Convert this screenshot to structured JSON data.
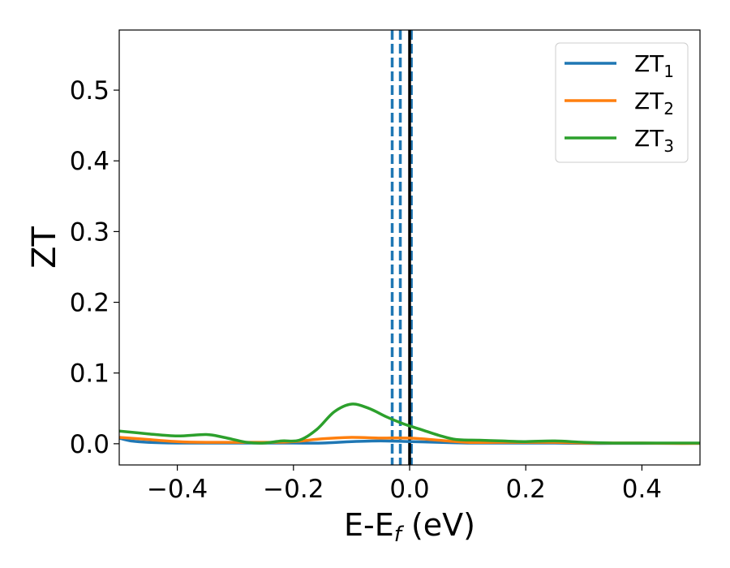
{
  "chart_data": {
    "type": "line",
    "title": "",
    "xlabel": "E-E",
    "xlabel_sub": "f",
    "xlabel_unit": " (eV)",
    "ylabel": "ZT",
    "xlim": [
      -0.5,
      0.5
    ],
    "ylim": [
      -0.03,
      0.585
    ],
    "x_ticks": [
      -0.4,
      -0.2,
      0.0,
      0.2,
      0.4
    ],
    "x_tick_labels": [
      "−0.4",
      "−0.2",
      "0.0",
      "0.2",
      "0.4"
    ],
    "y_ticks": [
      0.0,
      0.1,
      0.2,
      0.3,
      0.4,
      0.5
    ],
    "y_tick_labels": [
      "0.0",
      "0.1",
      "0.2",
      "0.3",
      "0.4",
      "0.5"
    ],
    "grid": false,
    "legend_position": "top-right",
    "vertical_lines": [
      {
        "x": -0.03,
        "style": "dashed",
        "color": "#1f77b4"
      },
      {
        "x": -0.016,
        "style": "dashed",
        "color": "#1f77b4"
      },
      {
        "x": 0.003,
        "style": "dashed",
        "color": "#1f77b4"
      },
      {
        "x": 0.0,
        "style": "solid",
        "color": "#000000"
      }
    ],
    "series": [
      {
        "name": "ZT",
        "subscript": "1",
        "color": "#1f77b4",
        "x": [
          -0.5,
          -0.48,
          -0.45,
          -0.4,
          -0.35,
          -0.3,
          -0.25,
          -0.2,
          -0.15,
          -0.1,
          -0.05,
          0.0,
          0.05,
          0.1,
          0.15,
          0.2,
          0.25,
          0.3,
          0.35,
          0.4,
          0.45,
          0.5
        ],
        "y": [
          0.008,
          0.004,
          0.002,
          0.001,
          0.001,
          0.001,
          0.001,
          0.001,
          0.001,
          0.003,
          0.004,
          0.003,
          0.002,
          0.001,
          0.001,
          0.001,
          0.001,
          0.0005,
          0.0005,
          0.0005,
          0.0005,
          0.0005
        ]
      },
      {
        "name": "ZT",
        "subscript": "2",
        "color": "#ff7f0e",
        "x": [
          -0.5,
          -0.45,
          -0.4,
          -0.35,
          -0.3,
          -0.25,
          -0.2,
          -0.15,
          -0.1,
          -0.05,
          0.0,
          0.05,
          0.1,
          0.15,
          0.2,
          0.25,
          0.3,
          0.35,
          0.4,
          0.45,
          0.5
        ],
        "y": [
          0.009,
          0.006,
          0.003,
          0.002,
          0.002,
          0.002,
          0.003,
          0.007,
          0.009,
          0.008,
          0.008,
          0.005,
          0.002,
          0.002,
          0.002,
          0.002,
          0.001,
          0.001,
          0.001,
          0.0005,
          0.0005
        ]
      },
      {
        "name": "ZT",
        "subscript": "3",
        "color": "#2ca02c",
        "x": [
          -0.5,
          -0.45,
          -0.4,
          -0.35,
          -0.32,
          -0.28,
          -0.25,
          -0.22,
          -0.19,
          -0.16,
          -0.13,
          -0.1,
          -0.07,
          -0.04,
          -0.01,
          0.02,
          0.05,
          0.08,
          0.12,
          0.16,
          0.2,
          0.25,
          0.3,
          0.35,
          0.4,
          0.45,
          0.5
        ],
        "y": [
          0.018,
          0.014,
          0.011,
          0.013,
          0.009,
          0.002,
          0.001,
          0.004,
          0.005,
          0.02,
          0.045,
          0.056,
          0.05,
          0.038,
          0.028,
          0.02,
          0.012,
          0.006,
          0.005,
          0.004,
          0.003,
          0.004,
          0.002,
          0.001,
          0.001,
          0.001,
          0.001
        ]
      }
    ]
  }
}
